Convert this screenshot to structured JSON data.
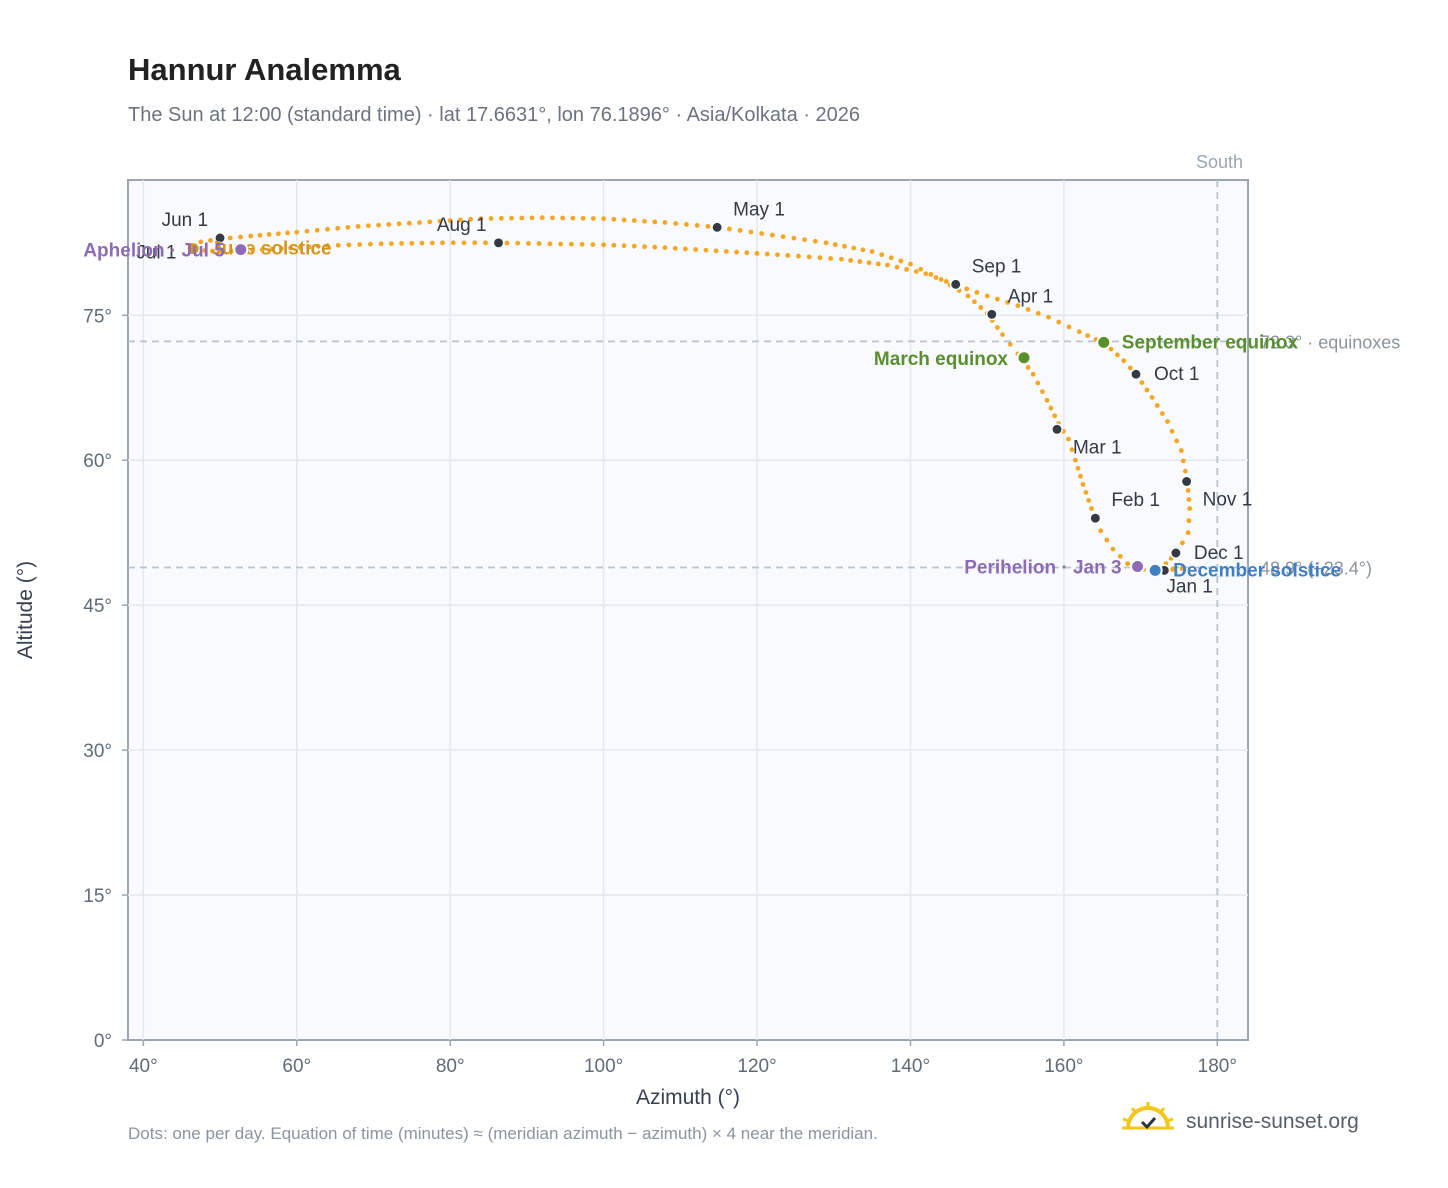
{
  "header": {
    "title": "Hannur Analemma",
    "subtitle": "The Sun at 12:00 (standard time) · lat 17.6631°, lon 76.1896° · Asia/Kolkata · 2026"
  },
  "footer": {
    "note": "Dots: one per day. Equation of time (minutes) ≈ (meridian azimuth − azimuth) × 4 near the meridian.",
    "brand": "sunrise-sunset.org",
    "brand_icon": "sun-check-icon"
  },
  "colors": {
    "curve": "#f5a623",
    "month_marker": "#333a45",
    "equinox": "#5a8f2e",
    "solstice_june": "#d4961c",
    "solstice_december": "#3f7fc4",
    "apsis": "#8e6bb5",
    "grid": "#e3e8ee",
    "plot_bg": "#f8fafd",
    "axis": "#9aa5b1",
    "reference_line": "#b8c4d0"
  },
  "chart_data": {
    "type": "scatter",
    "title": "Hannur Analemma",
    "xlabel": "Azimuth (°)",
    "ylabel": "Altitude (°)",
    "xlim": [
      38,
      184
    ],
    "ylim": [
      0,
      89
    ],
    "x_ticks": [
      40,
      60,
      80,
      100,
      120,
      140,
      160,
      180
    ],
    "x_tick_labels": [
      "40°",
      "60°",
      "80°",
      "100°",
      "120°",
      "140°",
      "160°",
      "180°"
    ],
    "y_ticks": [
      0,
      15,
      30,
      45,
      60,
      75
    ],
    "y_tick_labels": [
      "0°",
      "15°",
      "30°",
      "45°",
      "60°",
      "75°"
    ],
    "grid": true,
    "meridian": {
      "azimuth": 180,
      "label": "South"
    },
    "reference_lines": [
      {
        "altitude": 72.3,
        "label": "72.3° · equinoxes"
      },
      {
        "altitude": 48.9,
        "label": "48.9° (−23.4°)"
      }
    ],
    "daily_path": [
      [
        175.4,
        48.8
      ],
      [
        172.9,
        48.6
      ],
      [
        170.4,
        48.7
      ],
      [
        168.3,
        49.3
      ],
      [
        166.4,
        50.8
      ],
      [
        164.8,
        52.7
      ],
      [
        163.6,
        55.0
      ],
      [
        162.5,
        57.5
      ],
      [
        161.5,
        60.0
      ],
      [
        160.6,
        62.2
      ],
      [
        159.3,
        63.8
      ],
      [
        157.8,
        66.2
      ],
      [
        156.0,
        68.9
      ],
      [
        154.0,
        71.0
      ],
      [
        152.0,
        73.0
      ],
      [
        150.0,
        75.2
      ],
      [
        147.5,
        77.0
      ],
      [
        144.0,
        78.7
      ],
      [
        140.0,
        80.3
      ],
      [
        135.0,
        81.6
      ],
      [
        129.0,
        82.5
      ],
      [
        122.0,
        83.3
      ],
      [
        115.0,
        84.1
      ],
      [
        108.0,
        84.6
      ],
      [
        100.0,
        85.0
      ],
      [
        92.0,
        85.1
      ],
      [
        84.0,
        85.0
      ],
      [
        76.0,
        84.6
      ],
      [
        68.0,
        84.2
      ],
      [
        60.0,
        83.6
      ],
      [
        54.0,
        83.2
      ],
      [
        50.0,
        82.9
      ],
      [
        47.5,
        82.6
      ],
      [
        46.2,
        82.3
      ],
      [
        46.5,
        81.9
      ],
      [
        48.0,
        81.7
      ],
      [
        50.0,
        81.6
      ],
      [
        53.0,
        81.7
      ],
      [
        58.0,
        81.9
      ],
      [
        64.0,
        82.2
      ],
      [
        71.0,
        82.4
      ],
      [
        79.0,
        82.5
      ],
      [
        86.0,
        82.5
      ],
      [
        93.0,
        82.4
      ],
      [
        100.0,
        82.3
      ],
      [
        108.0,
        82.0
      ],
      [
        116.0,
        81.6
      ],
      [
        124.0,
        81.2
      ],
      [
        131.0,
        80.8
      ],
      [
        137.0,
        80.2
      ],
      [
        142.0,
        79.3
      ],
      [
        146.0,
        78.1
      ],
      [
        150.0,
        77.0
      ],
      [
        154.0,
        76.0
      ],
      [
        158.0,
        74.8
      ],
      [
        162.0,
        73.3
      ],
      [
        165.3,
        72.1
      ],
      [
        167.8,
        70.3
      ],
      [
        169.5,
        68.8
      ],
      [
        171.5,
        66.5
      ],
      [
        173.5,
        64.0
      ],
      [
        175.3,
        61.0
      ],
      [
        176.1,
        57.8
      ],
      [
        176.4,
        55.0
      ],
      [
        176.2,
        52.5
      ],
      [
        174.7,
        50.4
      ],
      [
        173.3,
        49.3
      ],
      [
        172.0,
        48.7
      ],
      [
        175.4,
        48.8
      ]
    ],
    "month_markers": [
      {
        "label": "Jan 1",
        "az": 173.1,
        "alt": 48.6,
        "label_pos": "below"
      },
      {
        "label": "Feb 1",
        "az": 164.1,
        "alt": 54.0,
        "label_pos": "above-right"
      },
      {
        "label": "Mar 1",
        "az": 159.1,
        "alt": 63.2,
        "label_pos": "below-right"
      },
      {
        "label": "Apr 1",
        "az": 150.6,
        "alt": 75.1,
        "label_pos": "above-right"
      },
      {
        "label": "May 1",
        "az": 114.8,
        "alt": 84.1,
        "label_pos": "above-right"
      },
      {
        "label": "Jun 1",
        "az": 50.0,
        "alt": 83.0,
        "label_pos": "above-left"
      },
      {
        "label": "Jul 1",
        "az": 46.4,
        "alt": 81.6,
        "label_pos": "left"
      },
      {
        "label": "Aug 1",
        "az": 86.3,
        "alt": 82.5,
        "label_pos": "above-left"
      },
      {
        "label": "Sep 1",
        "az": 145.9,
        "alt": 78.2,
        "label_pos": "above-right"
      },
      {
        "label": "Oct 1",
        "az": 169.4,
        "alt": 68.9,
        "label_pos": "right"
      },
      {
        "label": "Nov 1",
        "az": 176.0,
        "alt": 57.8,
        "label_pos": "below-right"
      },
      {
        "label": "Dec 1",
        "az": 174.6,
        "alt": 50.4,
        "label_pos": "right"
      }
    ],
    "events": [
      {
        "label": "March equinox",
        "az": 154.8,
        "alt": 70.6,
        "kind": "equinox",
        "label_pos": "left"
      },
      {
        "label": "September equinox",
        "az": 165.2,
        "alt": 72.2,
        "kind": "equinox",
        "label_pos": "right"
      },
      {
        "label": "June solstice",
        "az": 46.5,
        "alt": 81.9,
        "kind": "solstice_june",
        "label_pos": "right"
      },
      {
        "label": "December solstice",
        "az": 171.9,
        "alt": 48.6,
        "kind": "solstice_december",
        "label_pos": "right"
      },
      {
        "label": "Aphelion · Jul 5",
        "az": 52.7,
        "alt": 81.8,
        "kind": "apsis",
        "label_pos": "left"
      },
      {
        "label": "Perihelion · Jan 3",
        "az": 169.6,
        "alt": 49.0,
        "kind": "apsis",
        "label_pos": "left"
      }
    ]
  }
}
